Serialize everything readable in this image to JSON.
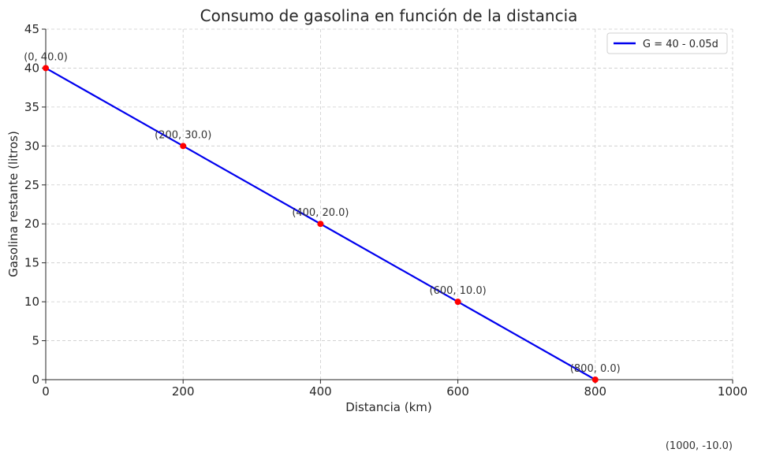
{
  "chart_data": {
    "type": "line",
    "title": "Consumo de gasolina en función de la distancia",
    "xlabel": "Distancia (km)",
    "ylabel": "Gasolina restante (litros)",
    "xlim": [
      0,
      1000
    ],
    "ylim": [
      0,
      45
    ],
    "xticks": [
      0,
      200,
      400,
      600,
      800,
      1000
    ],
    "yticks": [
      0,
      5,
      10,
      15,
      20,
      25,
      30,
      35,
      40,
      45
    ],
    "grid": true,
    "legend_position": "top-right",
    "series": [
      {
        "name": "G = 40 - 0.05d",
        "color": "#0000ee",
        "x": [
          0,
          800
        ],
        "y": [
          40,
          0
        ]
      }
    ],
    "points": [
      {
        "x": 0,
        "y": 40,
        "label": "(0, 40.0)"
      },
      {
        "x": 200,
        "y": 30,
        "label": "(200, 30.0)"
      },
      {
        "x": 400,
        "y": 20,
        "label": "(400, 20.0)"
      },
      {
        "x": 600,
        "y": 10,
        "label": "(600, 10.0)"
      },
      {
        "x": 800,
        "y": 0,
        "label": "(800, 0.0)"
      },
      {
        "x": 1000,
        "y": -10,
        "label": "(1000, -10.0)"
      }
    ],
    "point_color": "#ff0000"
  }
}
